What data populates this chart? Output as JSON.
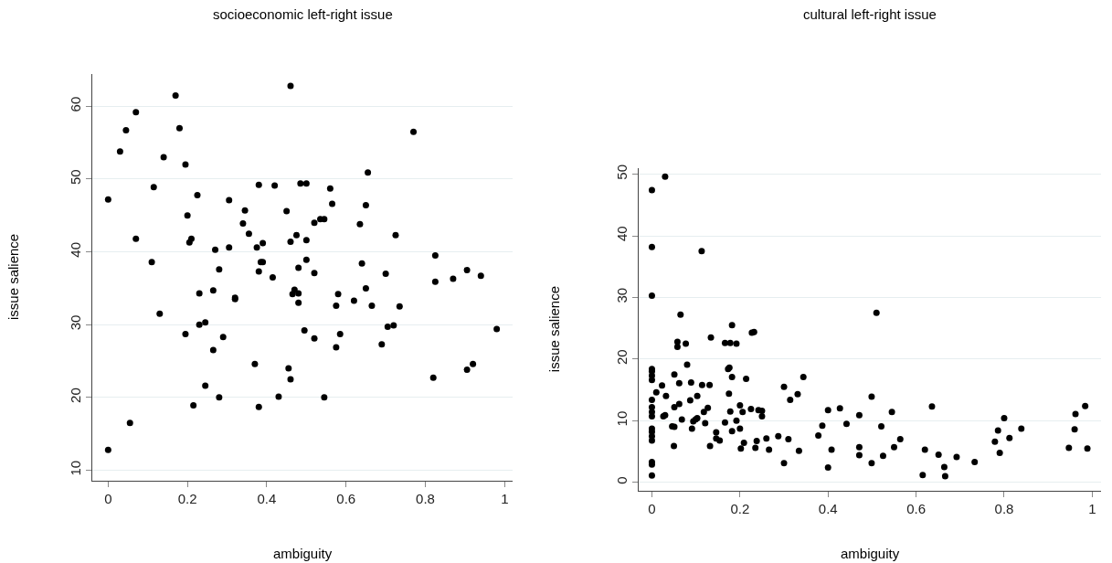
{
  "chart_data": [
    {
      "type": "scatter",
      "title": "socioeconomic left-right issue",
      "xlabel": "ambiguity",
      "ylabel": "issue salience",
      "xlim": [
        -0.04,
        1.02
      ],
      "ylim": [
        8.6,
        64.5
      ],
      "xticks": [
        0,
        0.2,
        0.4,
        0.6,
        0.8,
        1
      ],
      "yticks": [
        10,
        20,
        30,
        40,
        50,
        60
      ],
      "grid": "y",
      "marker": "circle",
      "series": [
        {
          "color": "#000000",
          "x": [
            0,
            0,
            0.03,
            0.045,
            0.07,
            0.07,
            0.055,
            0.115,
            0.11,
            0.13,
            0.14,
            0.17,
            0.18,
            0.195,
            0.2,
            0.205,
            0.21,
            0.195,
            0.215,
            0.225,
            0.23,
            0.23,
            0.245,
            0.245,
            0.265,
            0.27,
            0.265,
            0.28,
            0.28,
            0.29,
            0.305,
            0.305,
            0.32,
            0.32,
            0.34,
            0.345,
            0.355,
            0.37,
            0.38,
            0.375,
            0.38,
            0.385,
            0.39,
            0.39,
            0.38,
            0.415,
            0.42,
            0.43,
            0.45,
            0.46,
            0.46,
            0.465,
            0.47,
            0.455,
            0.46,
            0.475,
            0.48,
            0.48,
            0.48,
            0.485,
            0.5,
            0.5,
            0.5,
            0.495,
            0.52,
            0.52,
            0.52,
            0.535,
            0.545,
            0.545,
            0.56,
            0.565,
            0.575,
            0.58,
            0.575,
            0.585,
            0.62,
            0.635,
            0.64,
            0.655,
            0.65,
            0.65,
            0.665,
            0.69,
            0.7,
            0.705,
            0.72,
            0.725,
            0.735,
            0.77,
            0.82,
            0.825,
            0.825,
            0.87,
            0.905,
            0.905,
            0.92,
            0.94,
            0.98
          ],
          "values": [
            47.2,
            12.8,
            53.8,
            56.7,
            59.2,
            41.8,
            16.5,
            48.9,
            38.6,
            31.5,
            53,
            61.5,
            57,
            52,
            45,
            41.3,
            41.8,
            28.7,
            18.9,
            47.8,
            34.3,
            30,
            30.3,
            21.6,
            34.7,
            40.3,
            26.5,
            37.6,
            20,
            28.3,
            47.1,
            40.6,
            33.7,
            33.5,
            43.9,
            45.7,
            42.5,
            24.6,
            49.2,
            40.6,
            37.3,
            38.6,
            41.2,
            38.6,
            18.7,
            36.5,
            49.1,
            20.1,
            45.6,
            62.8,
            41.4,
            34.2,
            34.8,
            24,
            22.5,
            42.3,
            37.8,
            34.3,
            33,
            49.4,
            49.4,
            41.6,
            38.9,
            29.2,
            44,
            37.1,
            28.1,
            44.5,
            44.5,
            20,
            48.7,
            46.6,
            32.6,
            34.2,
            26.9,
            28.7,
            33.3,
            43.8,
            38.4,
            50.9,
            46.4,
            35,
            32.6,
            27.3,
            37,
            29.7,
            29.9,
            42.3,
            32.5,
            56.5,
            22.7,
            39.5,
            35.9,
            36.3,
            37.5,
            23.8,
            24.6,
            36.7,
            29.4
          ]
        }
      ]
    },
    {
      "type": "scatter",
      "title": "cultural left-right issue",
      "xlabel": "ambiguity",
      "ylabel": "issue salience",
      "xlim": [
        -0.03,
        1.02
      ],
      "ylim": [
        -1.3,
        51
      ],
      "xticks": [
        0,
        0.2,
        0.4,
        0.6,
        0.8,
        1
      ],
      "yticks": [
        0,
        10,
        20,
        30,
        40,
        50
      ],
      "grid": "y",
      "marker": "circle",
      "series": [
        {
          "color": "#000000",
          "x": [
            0,
            0,
            0,
            0,
            0,
            0,
            0,
            0,
            0,
            0,
            0,
            0,
            0,
            0,
            0,
            0,
            0,
            0,
            0.03,
            0.01,
            0.023,
            0.026,
            0.03,
            0.032,
            0.046,
            0.051,
            0.05,
            0.051,
            0.051,
            0.058,
            0.058,
            0.062,
            0.062,
            0.065,
            0.068,
            0.077,
            0.08,
            0.087,
            0.089,
            0.091,
            0.094,
            0.099,
            0.103,
            0.103,
            0.113,
            0.114,
            0.118,
            0.121,
            0.127,
            0.131,
            0.132,
            0.134,
            0.146,
            0.146,
            0.154,
            0.166,
            0.166,
            0.173,
            0.176,
            0.178,
            0.175,
            0.178,
            0.182,
            0.182,
            0.182,
            0.192,
            0.192,
            0.2,
            0.2,
            0.202,
            0.206,
            0.209,
            0.214,
            0.225,
            0.227,
            0.232,
            0.235,
            0.238,
            0.242,
            0.25,
            0.25,
            0.26,
            0.266,
            0.287,
            0.3,
            0.3,
            0.31,
            0.314,
            0.331,
            0.334,
            0.344,
            0.378,
            0.387,
            0.4,
            0.4,
            0.408,
            0.427,
            0.442,
            0.471,
            0.471,
            0.471,
            0.499,
            0.499,
            0.51,
            0.521,
            0.525,
            0.545,
            0.55,
            0.564,
            0.615,
            0.62,
            0.636,
            0.651,
            0.664,
            0.666,
            0.692,
            0.733,
            0.779,
            0.786,
            0.79,
            0.8,
            0.812,
            0.839,
            0.947,
            0.96,
            0.962,
            0.984,
            0.989
          ],
          "values": [
            1.1,
            2.9,
            3.3,
            6.8,
            7.5,
            8.2,
            8.7,
            10.7,
            11.4,
            12.2,
            13.4,
            16.6,
            17.3,
            18,
            18.4,
            30.3,
            38.2,
            47.4,
            49.6,
            14.6,
            15.7,
            10.7,
            10.9,
            14,
            9.1,
            9,
            5.9,
            12.2,
            17.5,
            22,
            22.8,
            12.7,
            16.1,
            27.2,
            10.2,
            22.5,
            19.1,
            13.3,
            16.2,
            8.7,
            9.9,
            10.2,
            10.4,
            14,
            37.5,
            15.8,
            11.4,
            9.6,
            12.1,
            15.8,
            5.9,
            23.5,
            8.1,
            7.1,
            6.8,
            9.7,
            22.6,
            18.4,
            18.6,
            22.6,
            14.4,
            11.5,
            8.3,
            25.5,
            17.1,
            22.5,
            10,
            8.7,
            12.5,
            5.5,
            11.4,
            6.4,
            16.8,
            11.9,
            24.3,
            24.4,
            5.6,
            6.7,
            11.7,
            11.6,
            10.7,
            7.1,
            5.3,
            7.5,
            3.1,
            15.5,
            7,
            13.4,
            14.3,
            5.1,
            17.1,
            7.6,
            9.2,
            2.4,
            11.7,
            5.3,
            12,
            9.5,
            10.9,
            5.7,
            4.4,
            13.9,
            3.1,
            27.5,
            9.1,
            4.3,
            11.4,
            5.7,
            7,
            1.2,
            5.3,
            12.3,
            4.5,
            2.5,
            1,
            4.1,
            3.3,
            6.6,
            8.4,
            4.8,
            10.4,
            7.2,
            8.7,
            5.6,
            8.6,
            11.1,
            12.4,
            5.5
          ]
        }
      ]
    }
  ]
}
